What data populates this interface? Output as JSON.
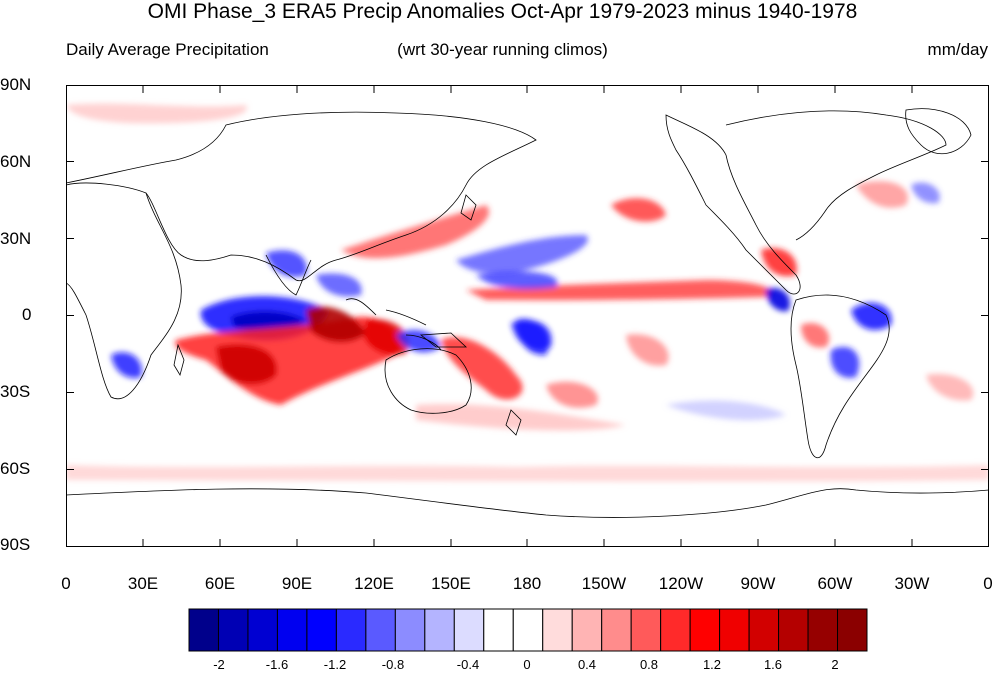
{
  "title": "OMI Phase_3 ERA5 Precip Anomalies Oct-Apr 1979-2023 minus 1940-1978",
  "subtitle_left": "Daily Average Precipitation",
  "subtitle_center": "(wrt 30-year running climos)",
  "subtitle_right": "mm/day",
  "lat_labels": [
    "90N",
    "60N",
    "30N",
    "0",
    "30S",
    "60S",
    "90S"
  ],
  "lon_labels": [
    "0",
    "30E",
    "60E",
    "90E",
    "120E",
    "150E",
    "180",
    "150W",
    "120W",
    "90W",
    "60W",
    "30W",
    "0"
  ],
  "colorbar": {
    "colors": [
      "#00008b",
      "#0000b4",
      "#0000d2",
      "#0000f0",
      "#0000ff",
      "#2a2aff",
      "#5a5aff",
      "#8c8cff",
      "#b4b4ff",
      "#dcdcff",
      "#ffffff",
      "#ffffff",
      "#ffdcdc",
      "#ffb4b4",
      "#ff8c8c",
      "#ff5a5a",
      "#ff2a2a",
      "#ff0000",
      "#f00000",
      "#d20000",
      "#b40000",
      "#960000",
      "#8b0000"
    ],
    "tick_labels": [
      "-2",
      "-1.6",
      "-1.2",
      "-0.8",
      "-0.4",
      "0",
      "0.4",
      "0.8",
      "1.2",
      "1.6",
      "2"
    ]
  },
  "colors": {
    "coastline": "#000000",
    "strong_negative": "#0000ff",
    "strong_positive": "#ff0000"
  }
}
